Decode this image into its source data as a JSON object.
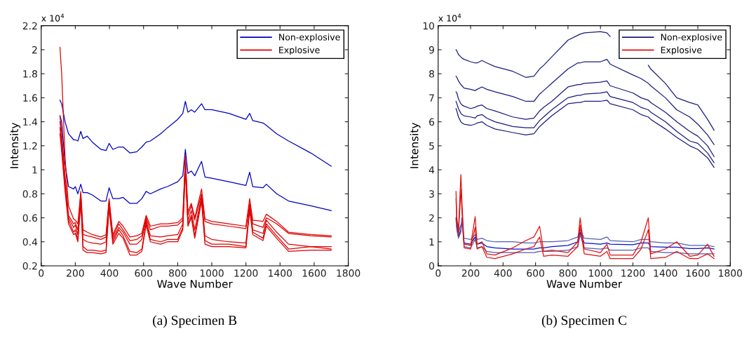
{
  "chart_data": [
    {
      "type": "line",
      "title": "(a) Specimen B",
      "xlabel": "Wave Number",
      "ylabel": "Intensity",
      "annotations": [
        "x 10$^{4}$"
      ],
      "xlim": [
        0,
        1800
      ],
      "xticks": [
        0,
        200,
        400,
        600,
        800,
        1000,
        1200,
        1400,
        1600,
        1800
      ],
      "ylim": [
        0.2,
        2.2
      ],
      "yticks": [
        0.2,
        0.4,
        0.6,
        0.8,
        1,
        1.2,
        1.4,
        1.6,
        1.8,
        2,
        2.2
      ],
      "legend": "top right",
      "grid": false,
      "x": [
        110,
        120,
        140,
        160,
        190,
        200,
        215,
        232,
        245,
        270,
        300,
        350,
        380,
        398,
        420,
        455,
        480,
        520,
        560,
        590,
        615,
        640,
        700,
        740,
        800,
        830,
        845,
        860,
        880,
        900,
        940,
        960,
        1000,
        1100,
        1200,
        1222,
        1240,
        1300,
        1320,
        1380,
        1450,
        1580,
        1700
      ],
      "series": [
        {
          "name": "Non-explosive",
          "color": "#0000c0",
          "values": [
            1.58,
            1.55,
            1.4,
            1.3,
            1.25,
            1.25,
            1.24,
            1.32,
            1.26,
            1.28,
            1.23,
            1.17,
            1.16,
            1.22,
            1.17,
            1.19,
            1.19,
            1.14,
            1.15,
            1.19,
            1.23,
            1.24,
            1.3,
            1.35,
            1.42,
            1.47,
            1.57,
            1.48,
            1.5,
            1.48,
            1.55,
            1.5,
            1.5,
            1.47,
            1.42,
            1.47,
            1.41,
            1.39,
            1.37,
            1.3,
            1.24,
            1.14,
            1.03
          ]
        },
        {
          "color": "#0000c0",
          "values": [
            1.45,
            1.4,
            1.05,
            0.86,
            0.84,
            0.86,
            0.8,
            0.88,
            0.81,
            0.81,
            0.79,
            0.74,
            0.74,
            0.85,
            0.76,
            0.76,
            0.77,
            0.72,
            0.72,
            0.76,
            0.82,
            0.8,
            0.84,
            0.86,
            0.9,
            0.95,
            1.17,
            0.97,
            0.99,
            0.95,
            1.07,
            0.94,
            0.93,
            0.9,
            0.87,
            0.98,
            0.86,
            0.85,
            0.88,
            0.8,
            0.74,
            0.7,
            0.66
          ]
        },
        {
          "name": "Explosive",
          "color": "#e00000",
          "values": [
            2.02,
            1.8,
            1.1,
            0.7,
            0.59,
            0.58,
            0.55,
            0.82,
            0.5,
            0.48,
            0.46,
            0.44,
            0.46,
            0.76,
            0.46,
            0.57,
            0.53,
            0.44,
            0.45,
            0.47,
            0.62,
            0.53,
            0.55,
            0.55,
            0.56,
            0.6,
            1.12,
            0.65,
            0.72,
            0.6,
            0.84,
            0.59,
            0.57,
            0.55,
            0.53,
            0.76,
            0.58,
            0.57,
            0.63,
            0.57,
            0.48,
            0.46,
            0.45
          ]
        },
        {
          "color": "#e00000",
          "values": [
            1.45,
            1.3,
            0.95,
            0.62,
            0.55,
            0.56,
            0.5,
            0.8,
            0.46,
            0.45,
            0.44,
            0.42,
            0.44,
            0.74,
            0.44,
            0.55,
            0.5,
            0.41,
            0.42,
            0.45,
            0.6,
            0.5,
            0.53,
            0.53,
            0.54,
            0.58,
            1.08,
            0.62,
            0.7,
            0.58,
            0.8,
            0.57,
            0.55,
            0.53,
            0.51,
            0.72,
            0.55,
            0.52,
            0.6,
            0.55,
            0.47,
            0.45,
            0.44
          ]
        },
        {
          "color": "#e00000",
          "values": [
            1.4,
            1.25,
            0.9,
            0.6,
            0.52,
            0.54,
            0.46,
            0.78,
            0.42,
            0.4,
            0.39,
            0.38,
            0.4,
            0.72,
            0.42,
            0.52,
            0.48,
            0.38,
            0.38,
            0.42,
            0.58,
            0.45,
            0.44,
            0.45,
            0.46,
            0.55,
            1.05,
            0.58,
            0.66,
            0.5,
            0.78,
            0.45,
            0.42,
            0.4,
            0.39,
            0.7,
            0.5,
            0.47,
            0.58,
            0.48,
            0.38,
            0.36,
            0.36
          ]
        },
        {
          "color": "#e00000",
          "values": [
            1.35,
            1.2,
            0.85,
            0.58,
            0.48,
            0.5,
            0.42,
            0.76,
            0.36,
            0.33,
            0.33,
            0.32,
            0.33,
            0.7,
            0.4,
            0.5,
            0.45,
            0.32,
            0.31,
            0.34,
            0.56,
            0.42,
            0.4,
            0.42,
            0.42,
            0.52,
            1.02,
            0.55,
            0.62,
            0.45,
            0.76,
            0.41,
            0.38,
            0.38,
            0.36,
            0.68,
            0.48,
            0.43,
            0.55,
            0.45,
            0.34,
            0.36,
            0.34
          ]
        },
        {
          "color": "#e00000",
          "values": [
            1.3,
            1.15,
            0.82,
            0.55,
            0.46,
            0.47,
            0.4,
            0.74,
            0.33,
            0.31,
            0.31,
            0.3,
            0.31,
            0.68,
            0.38,
            0.47,
            0.43,
            0.29,
            0.29,
            0.32,
            0.54,
            0.4,
            0.38,
            0.4,
            0.4,
            0.5,
            1.0,
            0.53,
            0.6,
            0.43,
            0.74,
            0.38,
            0.36,
            0.36,
            0.35,
            0.66,
            0.46,
            0.41,
            0.53,
            0.43,
            0.32,
            0.33,
            0.33
          ]
        }
      ]
    },
    {
      "type": "line",
      "title": "(b) Specimen C",
      "xlabel": "Wave Number",
      "ylabel": "Intensity",
      "annotations": [
        "x 10$^{4}$"
      ],
      "xlim": [
        0,
        1800
      ],
      "xticks": [
        0,
        200,
        400,
        600,
        800,
        1000,
        1200,
        1400,
        1600,
        1800
      ],
      "ylim": [
        0,
        10
      ],
      "yticks": [
        0,
        1,
        2,
        3,
        4,
        5,
        6,
        7,
        8,
        9,
        10
      ],
      "legend": "top right",
      "grid": false,
      "x": [
        110,
        115,
        125,
        140,
        147,
        160,
        200,
        228,
        240,
        270,
        300,
        350,
        460,
        540,
        590,
        625,
        650,
        700,
        800,
        860,
        875,
        900,
        1000,
        1040,
        1060,
        1200,
        1250,
        1295,
        1310,
        1400,
        1470,
        1550,
        1600,
        1660,
        1700
      ],
      "series": [
        {
          "name": "Non-explosive",
          "color": "#1a1a80",
          "values": [
            9.0,
            8.95,
            8.8,
            8.7,
            8.65,
            8.6,
            8.5,
            8.45,
            8.45,
            8.55,
            8.45,
            8.3,
            8.1,
            7.85,
            7.9,
            8.2,
            8.35,
            8.7,
            9.4,
            9.6,
            9.65,
            9.7,
            9.75,
            9.7,
            9.55,
            null,
            null,
            8.35,
            8.2,
            7.6,
            7.0,
            6.8,
            6.7,
            6.1,
            5.65
          ]
        },
        {
          "color": "#1a1a80",
          "values": [
            7.9,
            7.85,
            7.7,
            7.55,
            7.5,
            7.4,
            7.35,
            7.3,
            7.35,
            7.45,
            7.35,
            7.25,
            7.05,
            6.85,
            6.85,
            7.15,
            7.3,
            7.6,
            8.2,
            8.45,
            8.45,
            8.5,
            8.5,
            8.6,
            8.4,
            7.95,
            7.8,
            7.6,
            7.5,
            7.0,
            6.5,
            6.2,
            5.9,
            5.45,
            5.05
          ]
        },
        {
          "color": "#1a1a80",
          "values": [
            7.25,
            7.2,
            6.95,
            6.75,
            6.7,
            6.65,
            6.55,
            6.6,
            6.65,
            6.7,
            6.55,
            6.45,
            6.2,
            6.1,
            6.15,
            6.45,
            6.6,
            6.85,
            7.45,
            7.55,
            7.55,
            7.6,
            7.65,
            7.7,
            7.5,
            7.2,
            7.0,
            6.9,
            6.8,
            6.4,
            6.0,
            5.6,
            5.4,
            5.0,
            4.55
          ]
        },
        {
          "color": "#1a1a80",
          "values": [
            6.85,
            6.75,
            6.55,
            6.35,
            6.3,
            6.25,
            6.2,
            6.15,
            6.25,
            6.3,
            6.15,
            6.0,
            5.8,
            5.75,
            5.75,
            6.05,
            6.2,
            6.5,
            7.0,
            7.1,
            7.1,
            7.15,
            7.2,
            7.25,
            7.05,
            6.8,
            6.6,
            6.5,
            6.4,
            6.0,
            5.6,
            5.2,
            5.1,
            4.7,
            4.3
          ]
        },
        {
          "color": "#1a1a80",
          "values": [
            6.55,
            6.45,
            6.2,
            6.0,
            5.95,
            5.9,
            5.85,
            5.9,
            5.95,
            6.0,
            5.85,
            5.7,
            5.55,
            5.45,
            5.5,
            5.8,
            5.95,
            6.25,
            6.75,
            6.8,
            6.8,
            6.85,
            6.85,
            6.9,
            6.75,
            6.5,
            6.3,
            6.2,
            6.1,
            5.7,
            5.35,
            5.0,
            4.85,
            4.5,
            4.1
          ]
        },
        {
          "color": "#5060b0",
          "values": [
            null,
            1.8,
            1.35,
            1.7,
            null,
            1.15,
            1.1,
            1.3,
            1.1,
            1.15,
            1.05,
            1.0,
            1.0,
            0.95,
            0.95,
            1.0,
            1.0,
            1.0,
            1.05,
            1.2,
            1.5,
            1.15,
            1.1,
            1.2,
            1.05,
            1.0,
            1.1,
            1.1,
            1.0,
            0.95,
            0.95,
            0.85,
            0.85,
            0.85,
            0.8
          ]
        },
        {
          "color": "#0010d0",
          "values": [
            2.0,
            1.6,
            1.2,
            1.5,
            2.0,
            0.95,
            0.9,
            1.2,
            0.9,
            0.95,
            0.8,
            0.75,
            0.7,
            0.7,
            0.7,
            0.75,
            0.75,
            0.8,
            0.85,
            1.0,
            1.4,
            0.95,
            0.9,
            0.95,
            0.9,
            0.88,
            0.95,
            0.95,
            0.8,
            0.78,
            0.78,
            0.72,
            0.72,
            0.75,
            0.7
          ]
        },
        {
          "color": "#5060b0",
          "values": [
            1.9,
            1.5,
            1.15,
            1.4,
            1.9,
            0.8,
            0.75,
            1.1,
            0.75,
            0.8,
            0.6,
            0.55,
            0.55,
            0.55,
            0.55,
            0.6,
            0.6,
            0.6,
            0.65,
            0.8,
            1.3,
            0.75,
            0.7,
            0.75,
            0.65,
            0.65,
            0.75,
            0.75,
            0.6,
            0.55,
            0.55,
            0.5,
            0.5,
            0.5,
            0.5
          ]
        },
        {
          "name": "Explosive",
          "color": "#e01010",
          "values": [
            3.1,
            2.0,
            1.5,
            3.8,
            2.6,
            0.9,
            0.85,
            2.05,
            0.9,
            1.0,
            0.5,
            0.45,
            0.75,
            1.05,
            1.2,
            1.65,
            0.6,
            0.65,
            0.55,
            1.0,
            2.0,
            0.7,
            0.55,
            0.9,
            0.45,
            0.45,
            1.0,
            2.0,
            0.5,
            0.7,
            1.0,
            0.4,
            0.45,
            0.9,
            0.4
          ]
        },
        {
          "color": "#e01010",
          "values": [
            2.8,
            1.8,
            1.3,
            3.2,
            2.2,
            0.75,
            0.7,
            1.6,
            0.7,
            0.8,
            0.35,
            0.3,
            0.5,
            0.7,
            0.8,
            1.2,
            0.4,
            0.45,
            0.4,
            0.8,
            1.7,
            0.5,
            0.4,
            0.6,
            0.3,
            0.3,
            0.7,
            1.5,
            0.3,
            0.35,
            0.6,
            0.3,
            0.3,
            0.5,
            0.3
          ]
        }
      ]
    }
  ]
}
